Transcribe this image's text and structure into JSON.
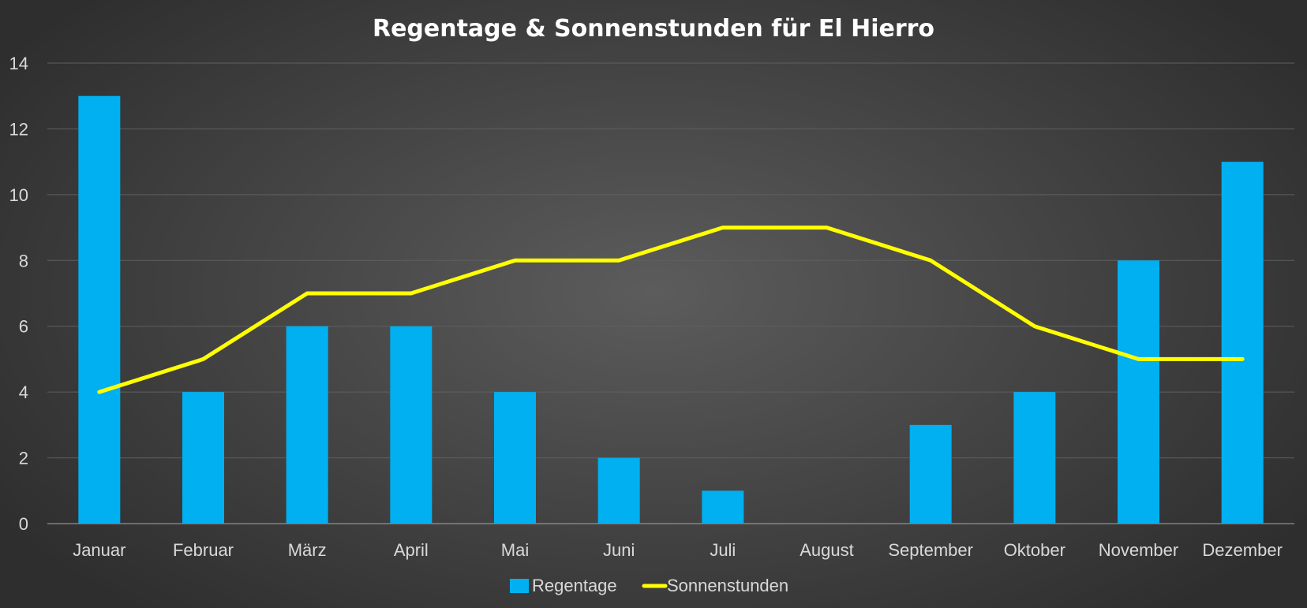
{
  "chart_data": {
    "type": "bar",
    "title": "Regentage & Sonnenstunden für El Hierro",
    "categories": [
      "Januar",
      "Februar",
      "März",
      "April",
      "Mai",
      "Juni",
      "Juli",
      "August",
      "September",
      "Oktober",
      "November",
      "Dezember"
    ],
    "series": [
      {
        "name": "Regentage",
        "type": "bar",
        "color": "#00b0f0",
        "values": [
          13,
          4,
          6,
          6,
          4,
          2,
          1,
          0,
          3,
          4,
          8,
          11
        ]
      },
      {
        "name": "Sonnenstunden",
        "type": "line",
        "color": "#ffff00",
        "values": [
          4,
          5,
          7,
          7,
          8,
          8,
          9,
          9,
          8,
          6,
          5,
          5
        ]
      }
    ],
    "ylim": [
      0,
      14
    ],
    "yticks": [
      0,
      2,
      4,
      6,
      8,
      10,
      12,
      14
    ],
    "grid": true,
    "legend": "bottom-center"
  }
}
